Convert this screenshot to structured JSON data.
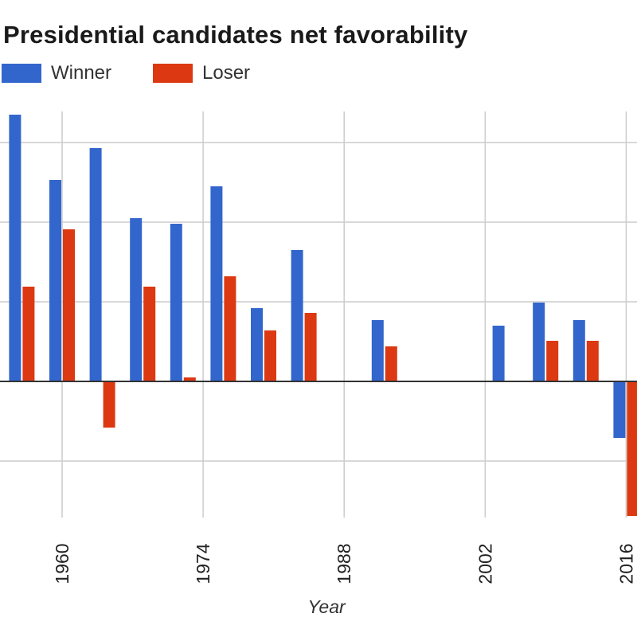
{
  "colors": {
    "winner": "#3366cc",
    "loser": "#dc3912",
    "grid": "#cccccc",
    "baseline": "#333333"
  },
  "chart_data": {
    "type": "bar",
    "title": "Presidential candidates net favorability",
    "xlabel": "Year",
    "ylabel": "",
    "legend_position": "top-left",
    "grid": true,
    "x_ticks": [
      1960,
      1974,
      1988,
      2002,
      2016
    ],
    "xlim": [
      1953.7,
      2017.2
    ],
    "ylim": [
      -17,
      34
    ],
    "categories": [
      1956,
      1960,
      1964,
      1968,
      1972,
      1976,
      1980,
      1984,
      1988,
      1992,
      1996,
      2000,
      2004,
      2008,
      2012,
      2016
    ],
    "series": [
      {
        "name": "Winner",
        "values": [
          33.5,
          25.3,
          29.3,
          20.5,
          19.8,
          24.5,
          9.2,
          16.5,
          null,
          7.7,
          null,
          null,
          7.0,
          9.9,
          7.7,
          -7.1
        ]
      },
      {
        "name": "Loser",
        "values": [
          11.9,
          19.1,
          -5.8,
          11.9,
          0.5,
          13.2,
          6.4,
          8.6,
          null,
          4.4,
          null,
          null,
          null,
          5.1,
          5.1,
          -16.9
        ]
      }
    ]
  }
}
